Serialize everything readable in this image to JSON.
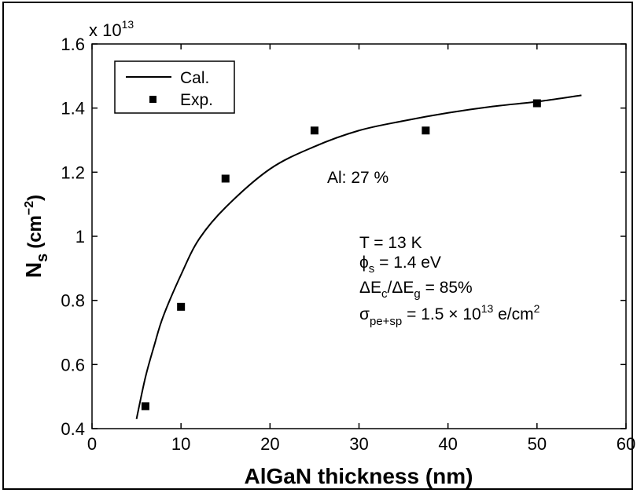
{
  "chart_data": {
    "type": "scatter",
    "title": "",
    "xlabel": "AlGaN thickness (nm)",
    "ylabel_main": "N",
    "ylabel_sub": "s",
    "ylabel_unit": "(cm",
    "ylabel_unit_exp": "−2",
    "ylabel_unit_close": ")",
    "xlim": [
      0,
      60
    ],
    "ylim": [
      0.4,
      1.6
    ],
    "xticks": [
      "0",
      "10",
      "20",
      "30",
      "40",
      "50",
      "60"
    ],
    "yticks": [
      "0.4",
      "0.6",
      "0.8",
      "1",
      "1.2",
      "1.4",
      "1.6"
    ],
    "y_multiplier_base": "x 10",
    "y_multiplier_exp": "13",
    "grid": false,
    "legend_position": "top-left",
    "series": [
      {
        "name": "Cal.",
        "kind": "line",
        "x": [
          5,
          6,
          7,
          8,
          10,
          12,
          15,
          20,
          25,
          30,
          35,
          40,
          45,
          50,
          55
        ],
        "y": [
          0.43,
          0.56,
          0.66,
          0.75,
          0.88,
          0.99,
          1.09,
          1.21,
          1.28,
          1.33,
          1.36,
          1.385,
          1.405,
          1.42,
          1.44
        ]
      },
      {
        "name": "Exp.",
        "kind": "marker",
        "x": [
          6,
          10,
          15,
          25,
          37.5,
          50
        ],
        "y": [
          0.47,
          0.78,
          1.18,
          1.33,
          1.33,
          1.415
        ]
      }
    ],
    "annotations": {
      "al": "Al: 27 %",
      "t": "T = 13 K",
      "phi_sym": "ϕ",
      "phi_sub": "s",
      "phi_val": " = 1.4 eV",
      "de_a": "ΔE",
      "de_sub_c": "c",
      "de_mid": "/ΔE",
      "de_sub_g": "g",
      "de_val": " = 85%",
      "sigma_sym": "σ",
      "sigma_sub": "pe+sp",
      "sigma_val": " = 1.5 × 10",
      "sigma_exp": "13",
      "sigma_unit": " e/cm",
      "sigma_unit_exp": "2"
    }
  }
}
